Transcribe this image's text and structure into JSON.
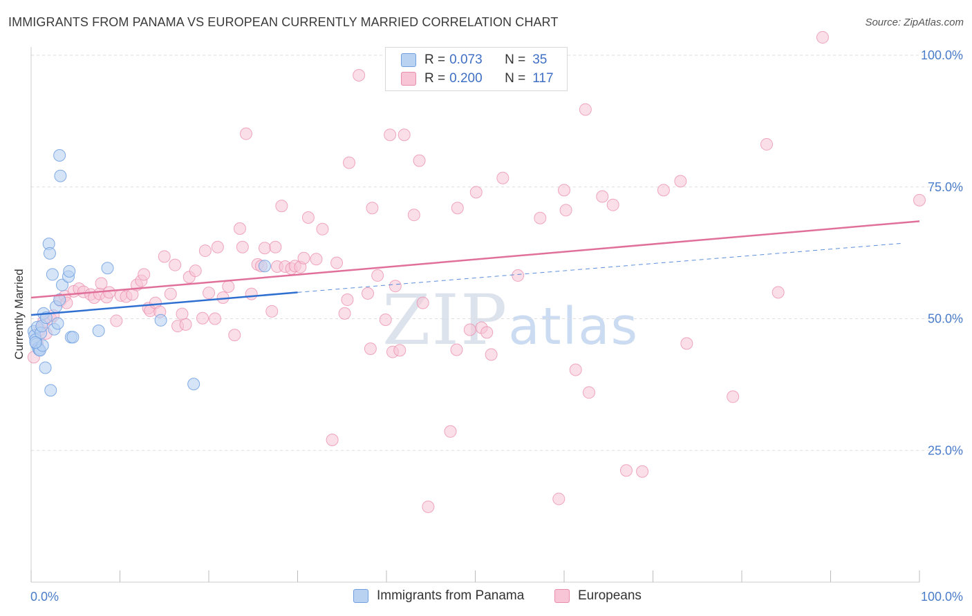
{
  "title": "IMMIGRANTS FROM PANAMA VS EUROPEAN CURRENTLY MARRIED CORRELATION CHART",
  "source": "Source: ZipAtlas.com",
  "watermark": {
    "zip": "ZIP",
    "atlas": "atlas"
  },
  "legend": {
    "r_label": "R =",
    "n_label": "N =",
    "rows": [
      {
        "r": "0.073",
        "n": "35"
      },
      {
        "r": "0.200",
        "n": "117"
      }
    ]
  },
  "bottom_legend": [
    "Immigrants from Panama",
    "Europeans"
  ],
  "chart_data": {
    "type": "scatter",
    "ylabel": "Currently Married",
    "x_ticks": [
      "0.0%",
      "100.0%"
    ],
    "y_ticks": [
      "25.0%",
      "50.0%",
      "75.0%",
      "100.0%"
    ],
    "xlim": [
      0,
      100
    ],
    "ylim": [
      0,
      102
    ],
    "grid": true,
    "colors": {
      "blue": "#6f9fe0",
      "blue_fill": "#b9d2f2",
      "blue_line": "#2f6fd0",
      "pink": "#e98bab",
      "pink_fill": "#f7c5d6",
      "pink_line": "#e0709a"
    },
    "series": [
      {
        "name": "Immigrants from Panama",
        "r": 0.073,
        "n": 35,
        "trend": {
          "x0": 0,
          "y0": 50.7,
          "x1": 30,
          "y1": 55.0,
          "dash_to_x": 98,
          "dash_to_y": 64.3
        },
        "points": [
          [
            0.3,
            47.6
          ],
          [
            0.4,
            46.8
          ],
          [
            0.5,
            46.0
          ],
          [
            0.6,
            45.2
          ],
          [
            0.7,
            48.4
          ],
          [
            0.8,
            44.4
          ],
          [
            0.9,
            44.1
          ],
          [
            1.0,
            44.0
          ],
          [
            1.1,
            47.3
          ],
          [
            1.2,
            48.6
          ],
          [
            1.3,
            44.9
          ],
          [
            1.4,
            51.0
          ],
          [
            1.6,
            40.7
          ],
          [
            1.7,
            50.2
          ],
          [
            2.0,
            64.2
          ],
          [
            2.1,
            62.4
          ],
          [
            2.2,
            36.4
          ],
          [
            2.4,
            58.4
          ],
          [
            2.6,
            48.0
          ],
          [
            2.8,
            52.3
          ],
          [
            3.0,
            49.1
          ],
          [
            3.2,
            53.6
          ],
          [
            3.2,
            81.0
          ],
          [
            3.3,
            77.1
          ],
          [
            3.5,
            56.4
          ],
          [
            4.2,
            58.0
          ],
          [
            4.3,
            59.0
          ],
          [
            4.5,
            46.5
          ],
          [
            4.7,
            46.5
          ],
          [
            7.6,
            47.7
          ],
          [
            8.6,
            59.6
          ],
          [
            14.6,
            49.7
          ],
          [
            18.3,
            37.6
          ],
          [
            26.3,
            60.0
          ],
          [
            0.5,
            45.5
          ]
        ]
      },
      {
        "name": "Europeans",
        "r": 0.2,
        "n": 117,
        "trend": {
          "x0": 0,
          "y0": 54.0,
          "x1": 100,
          "y1": 68.5
        },
        "points": [
          [
            0.3,
            42.7
          ],
          [
            0.7,
            45.3
          ],
          [
            1.0,
            47.9
          ],
          [
            1.4,
            49.4
          ],
          [
            1.7,
            47.2
          ],
          [
            2.2,
            50.0
          ],
          [
            2.5,
            50.6
          ],
          [
            3.3,
            53.4
          ],
          [
            3.8,
            54.3
          ],
          [
            4.0,
            53.0
          ],
          [
            4.8,
            55.2
          ],
          [
            5.4,
            55.7
          ],
          [
            5.9,
            55.1
          ],
          [
            6.7,
            54.6
          ],
          [
            7.1,
            54.0
          ],
          [
            7.7,
            54.7
          ],
          [
            7.9,
            56.7
          ],
          [
            8.5,
            54.1
          ],
          [
            8.8,
            55.0
          ],
          [
            9.6,
            49.6
          ],
          [
            10.1,
            54.4
          ],
          [
            10.7,
            54.2
          ],
          [
            11.4,
            54.6
          ],
          [
            11.9,
            56.4
          ],
          [
            12.4,
            57.2
          ],
          [
            12.7,
            58.4
          ],
          [
            13.2,
            52.0
          ],
          [
            13.4,
            51.5
          ],
          [
            14.0,
            53.0
          ],
          [
            14.5,
            51.3
          ],
          [
            15.0,
            61.8
          ],
          [
            15.7,
            54.7
          ],
          [
            16.2,
            60.2
          ],
          [
            16.5,
            48.6
          ],
          [
            17.0,
            50.9
          ],
          [
            17.4,
            48.9
          ],
          [
            17.8,
            57.9
          ],
          [
            18.5,
            59.1
          ],
          [
            19.3,
            50.1
          ],
          [
            19.6,
            62.9
          ],
          [
            20.0,
            54.9
          ],
          [
            20.7,
            50.0
          ],
          [
            21.0,
            63.6
          ],
          [
            21.6,
            54.0
          ],
          [
            22.2,
            56.1
          ],
          [
            22.9,
            46.9
          ],
          [
            23.5,
            67.1
          ],
          [
            23.8,
            63.6
          ],
          [
            24.2,
            85.1
          ],
          [
            24.8,
            54.7
          ],
          [
            25.5,
            60.3
          ],
          [
            25.9,
            60.0
          ],
          [
            26.3,
            63.4
          ],
          [
            27.1,
            51.4
          ],
          [
            27.5,
            63.6
          ],
          [
            27.7,
            59.9
          ],
          [
            28.2,
            71.4
          ],
          [
            28.6,
            59.9
          ],
          [
            29.3,
            59.5
          ],
          [
            29.7,
            60.0
          ],
          [
            30.3,
            59.8
          ],
          [
            30.7,
            61.5
          ],
          [
            31.2,
            69.2
          ],
          [
            32.1,
            61.3
          ],
          [
            32.8,
            67.0
          ],
          [
            33.9,
            27.0
          ],
          [
            34.4,
            60.6
          ],
          [
            35.3,
            51.0
          ],
          [
            35.6,
            53.6
          ],
          [
            35.8,
            79.6
          ],
          [
            36.9,
            96.2
          ],
          [
            37.9,
            54.8
          ],
          [
            38.2,
            44.3
          ],
          [
            38.4,
            71.0
          ],
          [
            39.0,
            58.2
          ],
          [
            39.9,
            49.8
          ],
          [
            40.4,
            84.9
          ],
          [
            40.7,
            43.7
          ],
          [
            41.0,
            56.2
          ],
          [
            42.0,
            84.9
          ],
          [
            43.1,
            69.7
          ],
          [
            43.7,
            80.0
          ],
          [
            44.1,
            53.0
          ],
          [
            44.7,
            14.3
          ],
          [
            46.5,
            94.4
          ],
          [
            47.2,
            28.6
          ],
          [
            47.9,
            44.1
          ],
          [
            48.0,
            71.0
          ],
          [
            49.4,
            47.9
          ],
          [
            50.1,
            74.0
          ],
          [
            50.7,
            48.3
          ],
          [
            50.9,
            97.8
          ],
          [
            51.3,
            47.4
          ],
          [
            51.8,
            43.2
          ],
          [
            53.1,
            76.7
          ],
          [
            54.8,
            58.2
          ],
          [
            57.3,
            69.1
          ],
          [
            59.4,
            15.8
          ],
          [
            60.0,
            74.4
          ],
          [
            60.2,
            70.6
          ],
          [
            61.3,
            40.3
          ],
          [
            62.4,
            89.7
          ],
          [
            62.8,
            36.0
          ],
          [
            64.3,
            73.2
          ],
          [
            65.5,
            71.6
          ],
          [
            67.0,
            21.2
          ],
          [
            68.8,
            21.0
          ],
          [
            71.2,
            74.4
          ],
          [
            73.1,
            76.1
          ],
          [
            73.8,
            45.3
          ],
          [
            79.0,
            35.2
          ],
          [
            82.8,
            83.1
          ],
          [
            84.1,
            55.0
          ],
          [
            89.1,
            103.4
          ],
          [
            100.0,
            72.5
          ],
          [
            41.5,
            44.0
          ]
        ]
      }
    ]
  }
}
